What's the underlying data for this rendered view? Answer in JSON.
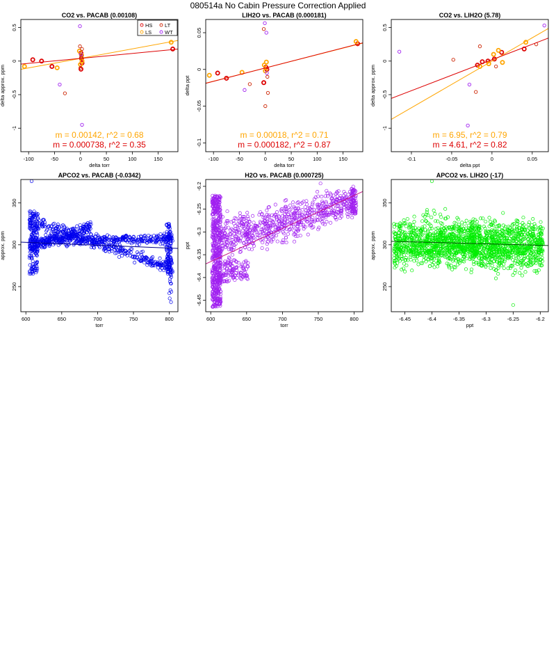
{
  "page_title": "080514a   No Cabin Pressure Correction Applied",
  "colors": {
    "HS": "#dd0000",
    "LS": "#ffa500",
    "LT": "#cc2200",
    "WT": "#a020f0"
  },
  "chart_data": [
    {
      "type": "scatter",
      "title": "CO2 vs. PACAB (0.00108)",
      "xlabel": "delta torr",
      "ylabel": "delta approx. ppm",
      "xlim": [
        -115,
        188
      ],
      "ylim": [
        -1.35,
        0.62
      ],
      "xticks": [
        -100,
        -50,
        0,
        50,
        100,
        150
      ],
      "yticks": [
        -1.0,
        -0.5,
        0.0,
        0.5
      ],
      "legend": {
        "position": "top-right",
        "entries": [
          {
            "label": "HS",
            "color": "#dd0000"
          },
          {
            "label": "LT",
            "color": "#cc2200"
          },
          {
            "label": "LS",
            "color": "#ffa500"
          },
          {
            "label": "WT",
            "color": "#a020f0"
          }
        ]
      },
      "series": [
        {
          "name": "HS",
          "color": "#dd0000",
          "bold": true,
          "points": [
            [
              -92,
              0.02
            ],
            [
              -75,
              0.0
            ],
            [
              -55,
              -0.08
            ],
            [
              1,
              0.12
            ],
            [
              2,
              0.04
            ],
            [
              3,
              -0.03
            ],
            [
              1,
              -0.12
            ],
            [
              178,
              0.18
            ]
          ]
        },
        {
          "name": "LS",
          "color": "#ffa500",
          "bold": true,
          "points": [
            [
              -108,
              -0.08
            ],
            [
              -45,
              -0.1
            ],
            [
              -2,
              0.15
            ],
            [
              2,
              0.09
            ],
            [
              3,
              0.0
            ],
            [
              0,
              -0.05
            ],
            [
              175,
              0.28
            ]
          ]
        },
        {
          "name": "LT",
          "color": "#cc2200",
          "bold": false,
          "points": [
            [
              -30,
              -0.48
            ],
            [
              -1,
              0.22
            ],
            [
              3,
              0.18
            ],
            [
              0,
              -0.1
            ],
            [
              2,
              0.08
            ],
            [
              1,
              0.05
            ]
          ]
        },
        {
          "name": "WT",
          "color": "#a020f0",
          "bold": false,
          "points": [
            [
              -1,
              0.52
            ],
            [
              3,
              -0.95
            ],
            [
              -40,
              -0.35
            ],
            [
              1,
              0.1
            ]
          ]
        }
      ],
      "fits": [
        {
          "color": "#ffa500",
          "slope": 0.00142,
          "intercept": 0.04
        },
        {
          "color": "#dd0000",
          "slope": 0.000738,
          "intercept": 0.04
        }
      ],
      "annotations": [
        {
          "text": "m = 0.00142, r^2 = 0.68",
          "color": "#ffa500"
        },
        {
          "text": "m = 0.000738, r^2 = 0.35",
          "color": "#dd0000"
        }
      ]
    },
    {
      "type": "scatter",
      "title": "LIH2O vs. PACAB (0.000181)",
      "xlabel": "delta torr",
      "ylabel": "delta ppt",
      "xlim": [
        -115,
        188
      ],
      "ylim": [
        -0.112,
        0.068
      ],
      "xticks": [
        -100,
        -50,
        0,
        50,
        100,
        150
      ],
      "yticks": [
        -0.1,
        -0.05,
        0.0,
        0.05
      ],
      "series": [
        {
          "name": "HS",
          "color": "#dd0000",
          "bold": true,
          "points": [
            [
              -92,
              -0.005
            ],
            [
              -75,
              -0.012
            ],
            [
              -3,
              -0.018
            ],
            [
              1,
              0.003
            ],
            [
              3,
              0.0
            ],
            [
              178,
              0.035
            ]
          ]
        },
        {
          "name": "LS",
          "color": "#ffa500",
          "bold": true,
          "points": [
            [
              -108,
              -0.008
            ],
            [
              -45,
              -0.004
            ],
            [
              -2,
              0.006
            ],
            [
              2,
              0.01
            ],
            [
              0,
              -0.002
            ],
            [
              175,
              0.038
            ]
          ]
        },
        {
          "name": "LT",
          "color": "#cc2200",
          "bold": false,
          "points": [
            [
              -3,
              0.055
            ],
            [
              0,
              -0.05
            ],
            [
              4,
              -0.01
            ],
            [
              -30,
              -0.02
            ],
            [
              5,
              -0.032
            ]
          ]
        },
        {
          "name": "WT",
          "color": "#a020f0",
          "bold": false,
          "points": [
            [
              -1,
              0.063
            ],
            [
              2,
              0.05
            ],
            [
              -40,
              -0.028
            ],
            [
              3,
              -0.005
            ]
          ]
        }
      ],
      "fits": [
        {
          "color": "#ffa500",
          "slope": 0.00018,
          "intercept": 0.002
        },
        {
          "color": "#dd0000",
          "slope": 0.000182,
          "intercept": 0.002
        }
      ],
      "annotations": [
        {
          "text": "m = 0.00018, r^2 = 0.71",
          "color": "#ffa500"
        },
        {
          "text": "m = 0.000182, r^2 = 0.87",
          "color": "#dd0000"
        }
      ]
    },
    {
      "type": "scatter",
      "title": "CO2 vs. LIH2O (5.78)",
      "xlabel": "delta ppt",
      "ylabel": "delta approx. ppm",
      "xlim": [
        -0.125,
        0.07
      ],
      "ylim": [
        -1.35,
        0.62
      ],
      "xticks": [
        -0.1,
        -0.05,
        0.0,
        0.05
      ],
      "yticks": [
        -1.0,
        -0.5,
        0.0,
        0.5
      ],
      "series": [
        {
          "name": "HS",
          "color": "#dd0000",
          "bold": true,
          "points": [
            [
              -0.018,
              -0.06
            ],
            [
              -0.012,
              -0.01
            ],
            [
              0.003,
              0.03
            ],
            [
              0.012,
              0.13
            ],
            [
              0.04,
              0.18
            ],
            [
              -0.005,
              0.0
            ]
          ]
        },
        {
          "name": "LS",
          "color": "#ffa500",
          "bold": true,
          "points": [
            [
              -0.015,
              -0.08
            ],
            [
              -0.004,
              -0.04
            ],
            [
              0.008,
              0.16
            ],
            [
              0.013,
              -0.02
            ],
            [
              0.042,
              0.28
            ],
            [
              0.002,
              0.1
            ]
          ]
        },
        {
          "name": "LT",
          "color": "#cc2200",
          "bold": false,
          "points": [
            [
              -0.02,
              -0.46
            ],
            [
              -0.048,
              0.02
            ],
            [
              -0.015,
              0.22
            ],
            [
              0.055,
              0.25
            ],
            [
              0.005,
              -0.08
            ]
          ]
        },
        {
          "name": "WT",
          "color": "#a020f0",
          "bold": false,
          "points": [
            [
              -0.115,
              0.14
            ],
            [
              0.065,
              0.53
            ],
            [
              -0.03,
              -0.96
            ],
            [
              -0.028,
              -0.35
            ]
          ]
        }
      ],
      "fits": [
        {
          "color": "#ffa500",
          "slope": 6.95,
          "intercept": 0.0
        },
        {
          "color": "#dd0000",
          "slope": 4.61,
          "intercept": 0.02
        }
      ],
      "annotations": [
        {
          "text": "m = 6.95, r^2 = 0.79",
          "color": "#ffa500"
        },
        {
          "text": "m = 4.61, r^2 = 0.82",
          "color": "#dd0000"
        }
      ]
    },
    {
      "type": "scatter",
      "title": "APCO2 vs. PACAB (-0.0342)",
      "xlabel": "torr",
      "ylabel": "approx. ppm",
      "xlim": [
        593,
        812
      ],
      "ylim": [
        220,
        378
      ],
      "xticks": [
        600,
        650,
        700,
        750,
        800
      ],
      "yticks": [
        250,
        300,
        350
      ],
      "color": "#0000ee",
      "fit": {
        "color": "#00008b",
        "slope": -0.0342,
        "intercept": 323.4
      },
      "series_desc": [
        {
          "name": "upper band",
          "trend": [
            [
              610,
              305
            ],
            [
              640,
              308
            ],
            [
              700,
              312
            ],
            [
              800,
              307
            ]
          ]
        },
        {
          "name": "descending band",
          "trend": [
            [
              610,
              325
            ],
            [
              650,
              320
            ],
            [
              700,
              300
            ],
            [
              800,
              270
            ]
          ]
        },
        {
          "name": "ascending band",
          "trend": [
            [
              612,
              300
            ],
            [
              650,
              318
            ],
            [
              690,
              322
            ]
          ]
        },
        {
          "name": "outlier",
          "trend": [
            [
              608,
              376
            ]
          ]
        }
      ]
    },
    {
      "type": "scatter",
      "title": "H2O vs. PACAB (0.000725)",
      "xlabel": "torr",
      "ylabel": "ppt",
      "xlim": [
        593,
        812
      ],
      "ylim": [
        -6.475,
        -6.185
      ],
      "xticks": [
        600,
        650,
        700,
        750,
        800
      ],
      "yticks": [
        -6.45,
        -6.4,
        -6.35,
        -6.3,
        -6.25,
        -6.2
      ],
      "color": "#a020f0",
      "fit": {
        "color": "#c71585",
        "slope": 0.000725,
        "intercept": -6.8
      },
      "series_desc": [
        {
          "name": "vertical cluster",
          "trend": [
            [
              605,
              -6.45
            ],
            [
              605,
              -6.22
            ]
          ]
        },
        {
          "name": "rising cloud",
          "trend": [
            [
              620,
              -6.32
            ],
            [
              700,
              -6.28
            ],
            [
              800,
              -6.23
            ]
          ]
        },
        {
          "name": "lower island",
          "trend": [
            [
              620,
              -6.38
            ],
            [
              650,
              -6.4
            ]
          ]
        }
      ]
    },
    {
      "type": "scatter",
      "title": "APCO2 vs. LIH2O (-17)",
      "xlabel": "ppt",
      "ylabel": "approx. ppm",
      "xlim": [
        -6.475,
        -6.185
      ],
      "ylim": [
        220,
        378
      ],
      "xticks": [
        -6.45,
        -6.4,
        -6.35,
        -6.3,
        -6.25,
        -6.2
      ],
      "yticks": [
        250,
        300,
        350
      ],
      "color": "#00ee00",
      "fit": {
        "color": "#005000",
        "slope": -17,
        "intercept": 194.0
      },
      "series_desc": [
        {
          "name": "left cloud",
          "trend": [
            [
              -6.45,
              305
            ],
            [
              -6.4,
              300
            ],
            [
              -6.35,
              300
            ]
          ]
        },
        {
          "name": "right cloud",
          "trend": [
            [
              -6.32,
              310
            ],
            [
              -6.27,
              300
            ],
            [
              -6.22,
              295
            ]
          ]
        }
      ]
    }
  ]
}
